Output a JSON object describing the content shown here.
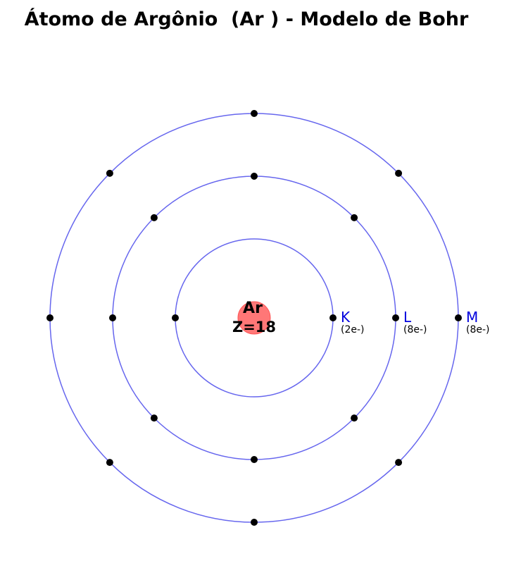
{
  "title": "Átomo de Argônio  (Ar ) - Modelo de Bohr",
  "colors": {
    "orbit": "#6666ee",
    "electron": "#000000",
    "nucleus": "#ff7777",
    "shell_label": "#0000dd"
  },
  "nucleus": {
    "symbol": "Ar",
    "atomic_number_label": "Z=18"
  },
  "shells": [
    {
      "name": "K",
      "electrons": 2,
      "count_label": "(2e-)"
    },
    {
      "name": "L",
      "electrons": 8,
      "count_label": "(8e-)"
    },
    {
      "name": "M",
      "electrons": 8,
      "count_label": "(8e-)"
    }
  ]
}
